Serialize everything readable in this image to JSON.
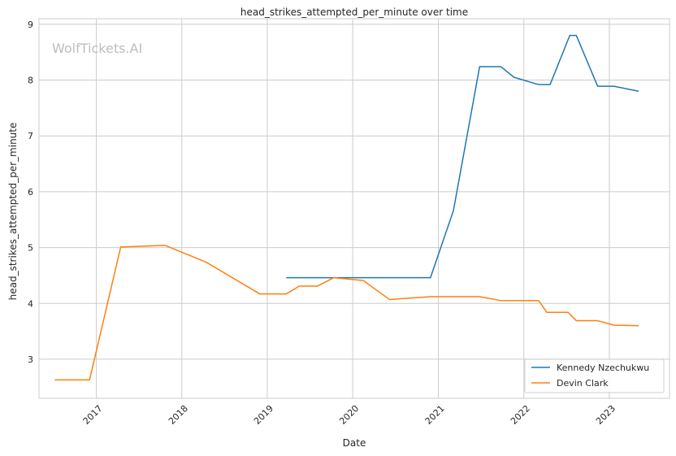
{
  "chart_data": {
    "type": "line",
    "title": "head_strikes_attempted_per_minute over time",
    "xlabel": "Date",
    "ylabel": "head_strikes_attempted_per_minute",
    "watermark": "WolfTickets.AI",
    "xlim": [
      "2016-05-01",
      "2023-09-15"
    ],
    "ylim": [
      2.3,
      9.1
    ],
    "x_ticks": [
      "2017-01-01",
      "2018-01-01",
      "2019-01-01",
      "2020-01-01",
      "2021-01-01",
      "2022-01-01",
      "2023-01-01"
    ],
    "x_tick_labels": [
      "2017",
      "2018",
      "2019",
      "2020",
      "2021",
      "2022",
      "2023"
    ],
    "y_ticks": [
      3,
      4,
      5,
      6,
      7,
      8,
      9
    ],
    "y_tick_labels": [
      "3",
      "4",
      "5",
      "6",
      "7",
      "8",
      "9"
    ],
    "grid": true,
    "legend_position": "bottom-right",
    "series": [
      {
        "name": "Kennedy Nzechukwu",
        "color": "#1f77b4",
        "points": [
          [
            "2019-03-23",
            4.46
          ],
          [
            "2020-11-28",
            4.46
          ],
          [
            "2021-03-06",
            5.66
          ],
          [
            "2021-06-26",
            8.24
          ],
          [
            "2021-09-25",
            8.24
          ],
          [
            "2021-11-20",
            8.05
          ],
          [
            "2022-03-05",
            7.92
          ],
          [
            "2022-04-23",
            7.92
          ],
          [
            "2022-07-16",
            8.8
          ],
          [
            "2022-08-13",
            8.8
          ],
          [
            "2022-11-12",
            7.89
          ],
          [
            "2023-01-21",
            7.89
          ],
          [
            "2023-05-06",
            7.8
          ]
        ]
      },
      {
        "name": "Devin Clark",
        "color": "#ff7f0e",
        "points": [
          [
            "2016-07-07",
            2.63
          ],
          [
            "2016-12-03",
            2.63
          ],
          [
            "2017-04-15",
            5.01
          ],
          [
            "2017-10-21",
            5.04
          ],
          [
            "2018-04-14",
            4.74
          ],
          [
            "2018-11-30",
            4.17
          ],
          [
            "2019-03-23",
            4.17
          ],
          [
            "2019-05-18",
            4.31
          ],
          [
            "2019-08-03",
            4.31
          ],
          [
            "2019-10-12",
            4.46
          ],
          [
            "2020-02-15",
            4.41
          ],
          [
            "2020-06-06",
            4.07
          ],
          [
            "2020-11-28",
            4.12
          ],
          [
            "2021-06-26",
            4.12
          ],
          [
            "2021-09-25",
            4.05
          ],
          [
            "2022-03-05",
            4.05
          ],
          [
            "2022-04-09",
            3.84
          ],
          [
            "2022-07-09",
            3.84
          ],
          [
            "2022-08-13",
            3.69
          ],
          [
            "2022-11-12",
            3.69
          ],
          [
            "2023-01-21",
            3.61
          ],
          [
            "2023-05-06",
            3.6
          ]
        ]
      }
    ]
  }
}
